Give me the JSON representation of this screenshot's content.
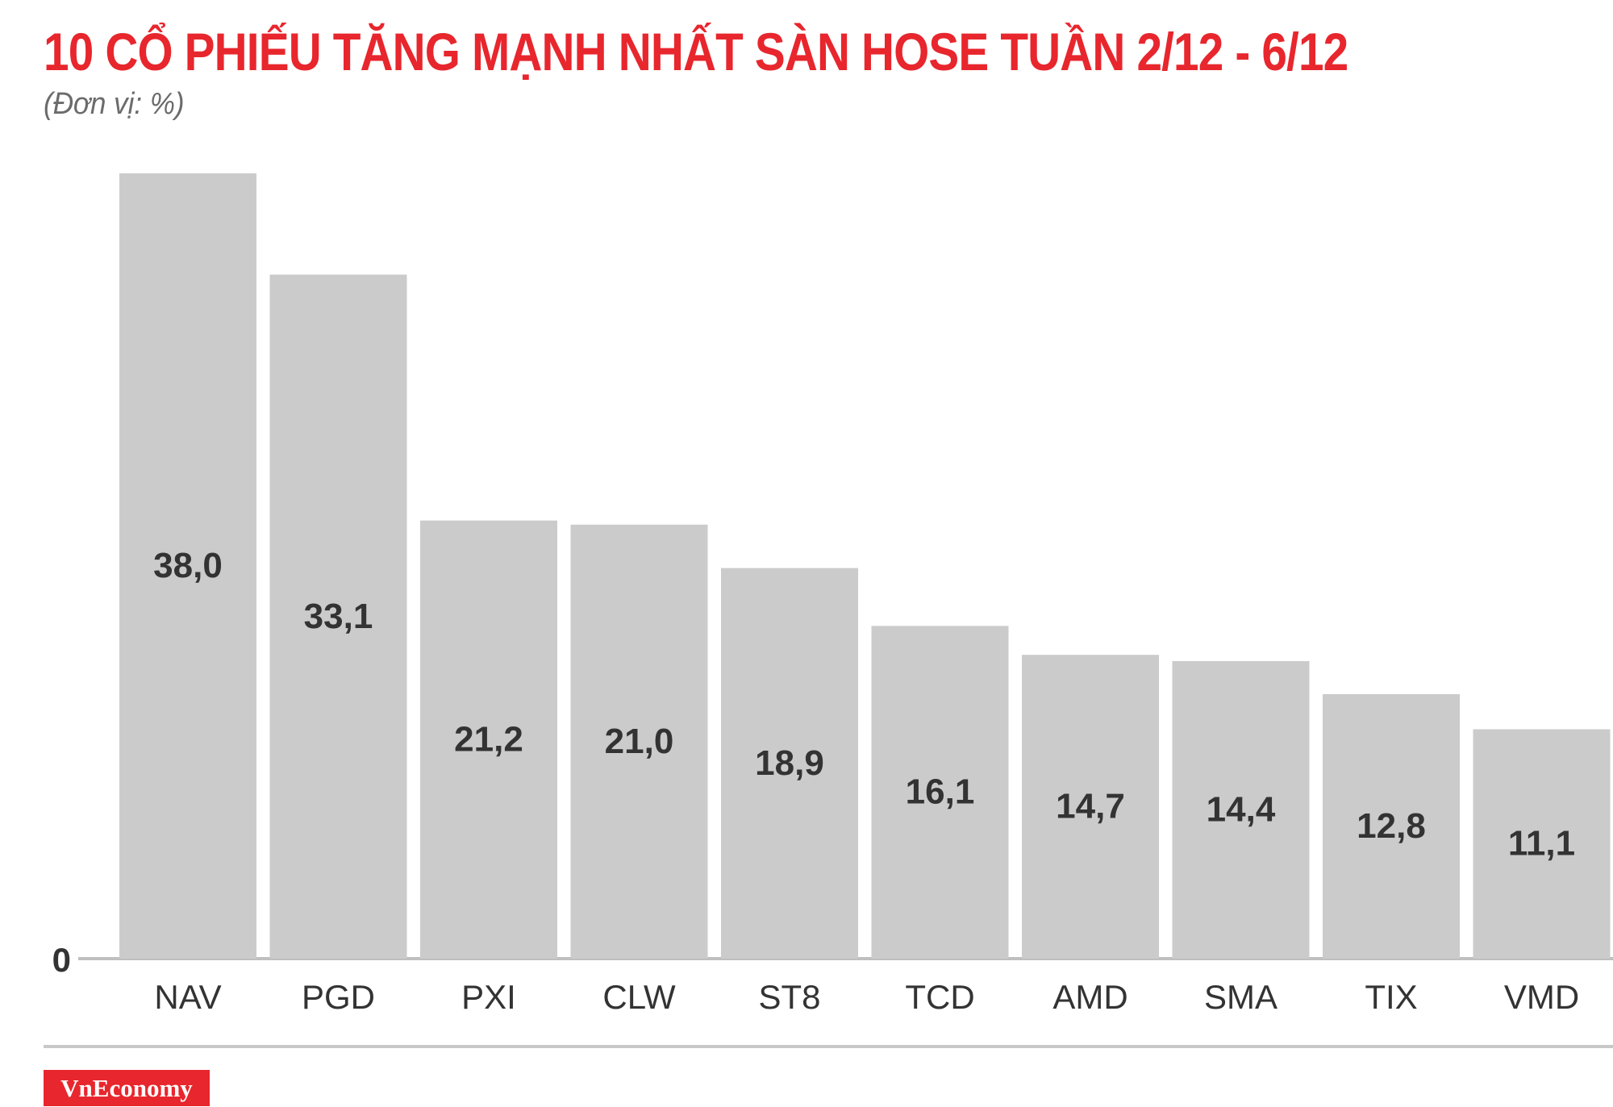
{
  "header": {
    "title": "10 CỔ PHIẾU TĂNG MẠNH NHẤT SÀN HOSE TUẦN 2/12 - 6/12",
    "subtitle": "(Đơn vị: %)"
  },
  "colors": {
    "title": "#e8262d",
    "bar": "#cccbcc",
    "value_label": "#333333",
    "axis_label": "#333333",
    "baseline": "#bfbfbf",
    "brand_bg": "#e8262d"
  },
  "chart_data": {
    "type": "bar",
    "title": "10 CỔ PHIẾU TĂNG MẠNH NHẤT SÀN HOSE TUẦN 2/12 - 6/12",
    "subtitle": "(Đơn vị: %)",
    "categories": [
      "NAV",
      "PGD",
      "PXI",
      "CLW",
      "ST8",
      "TCD",
      "AMD",
      "SMA",
      "TIX",
      "VMD"
    ],
    "values": [
      38.0,
      33.1,
      21.2,
      21.0,
      18.9,
      16.1,
      14.7,
      14.4,
      12.8,
      11.1
    ],
    "value_labels": [
      "38,0",
      "33,1",
      "21,2",
      "21,0",
      "18,9",
      "16,1",
      "14,7",
      "14,4",
      "12,8",
      "11,1"
    ],
    "y_tick_labels": [
      "0"
    ],
    "ylim": [
      0,
      38.0
    ],
    "grid": false,
    "legend": "none"
  },
  "footer": {
    "brand": "VnEconomy"
  }
}
